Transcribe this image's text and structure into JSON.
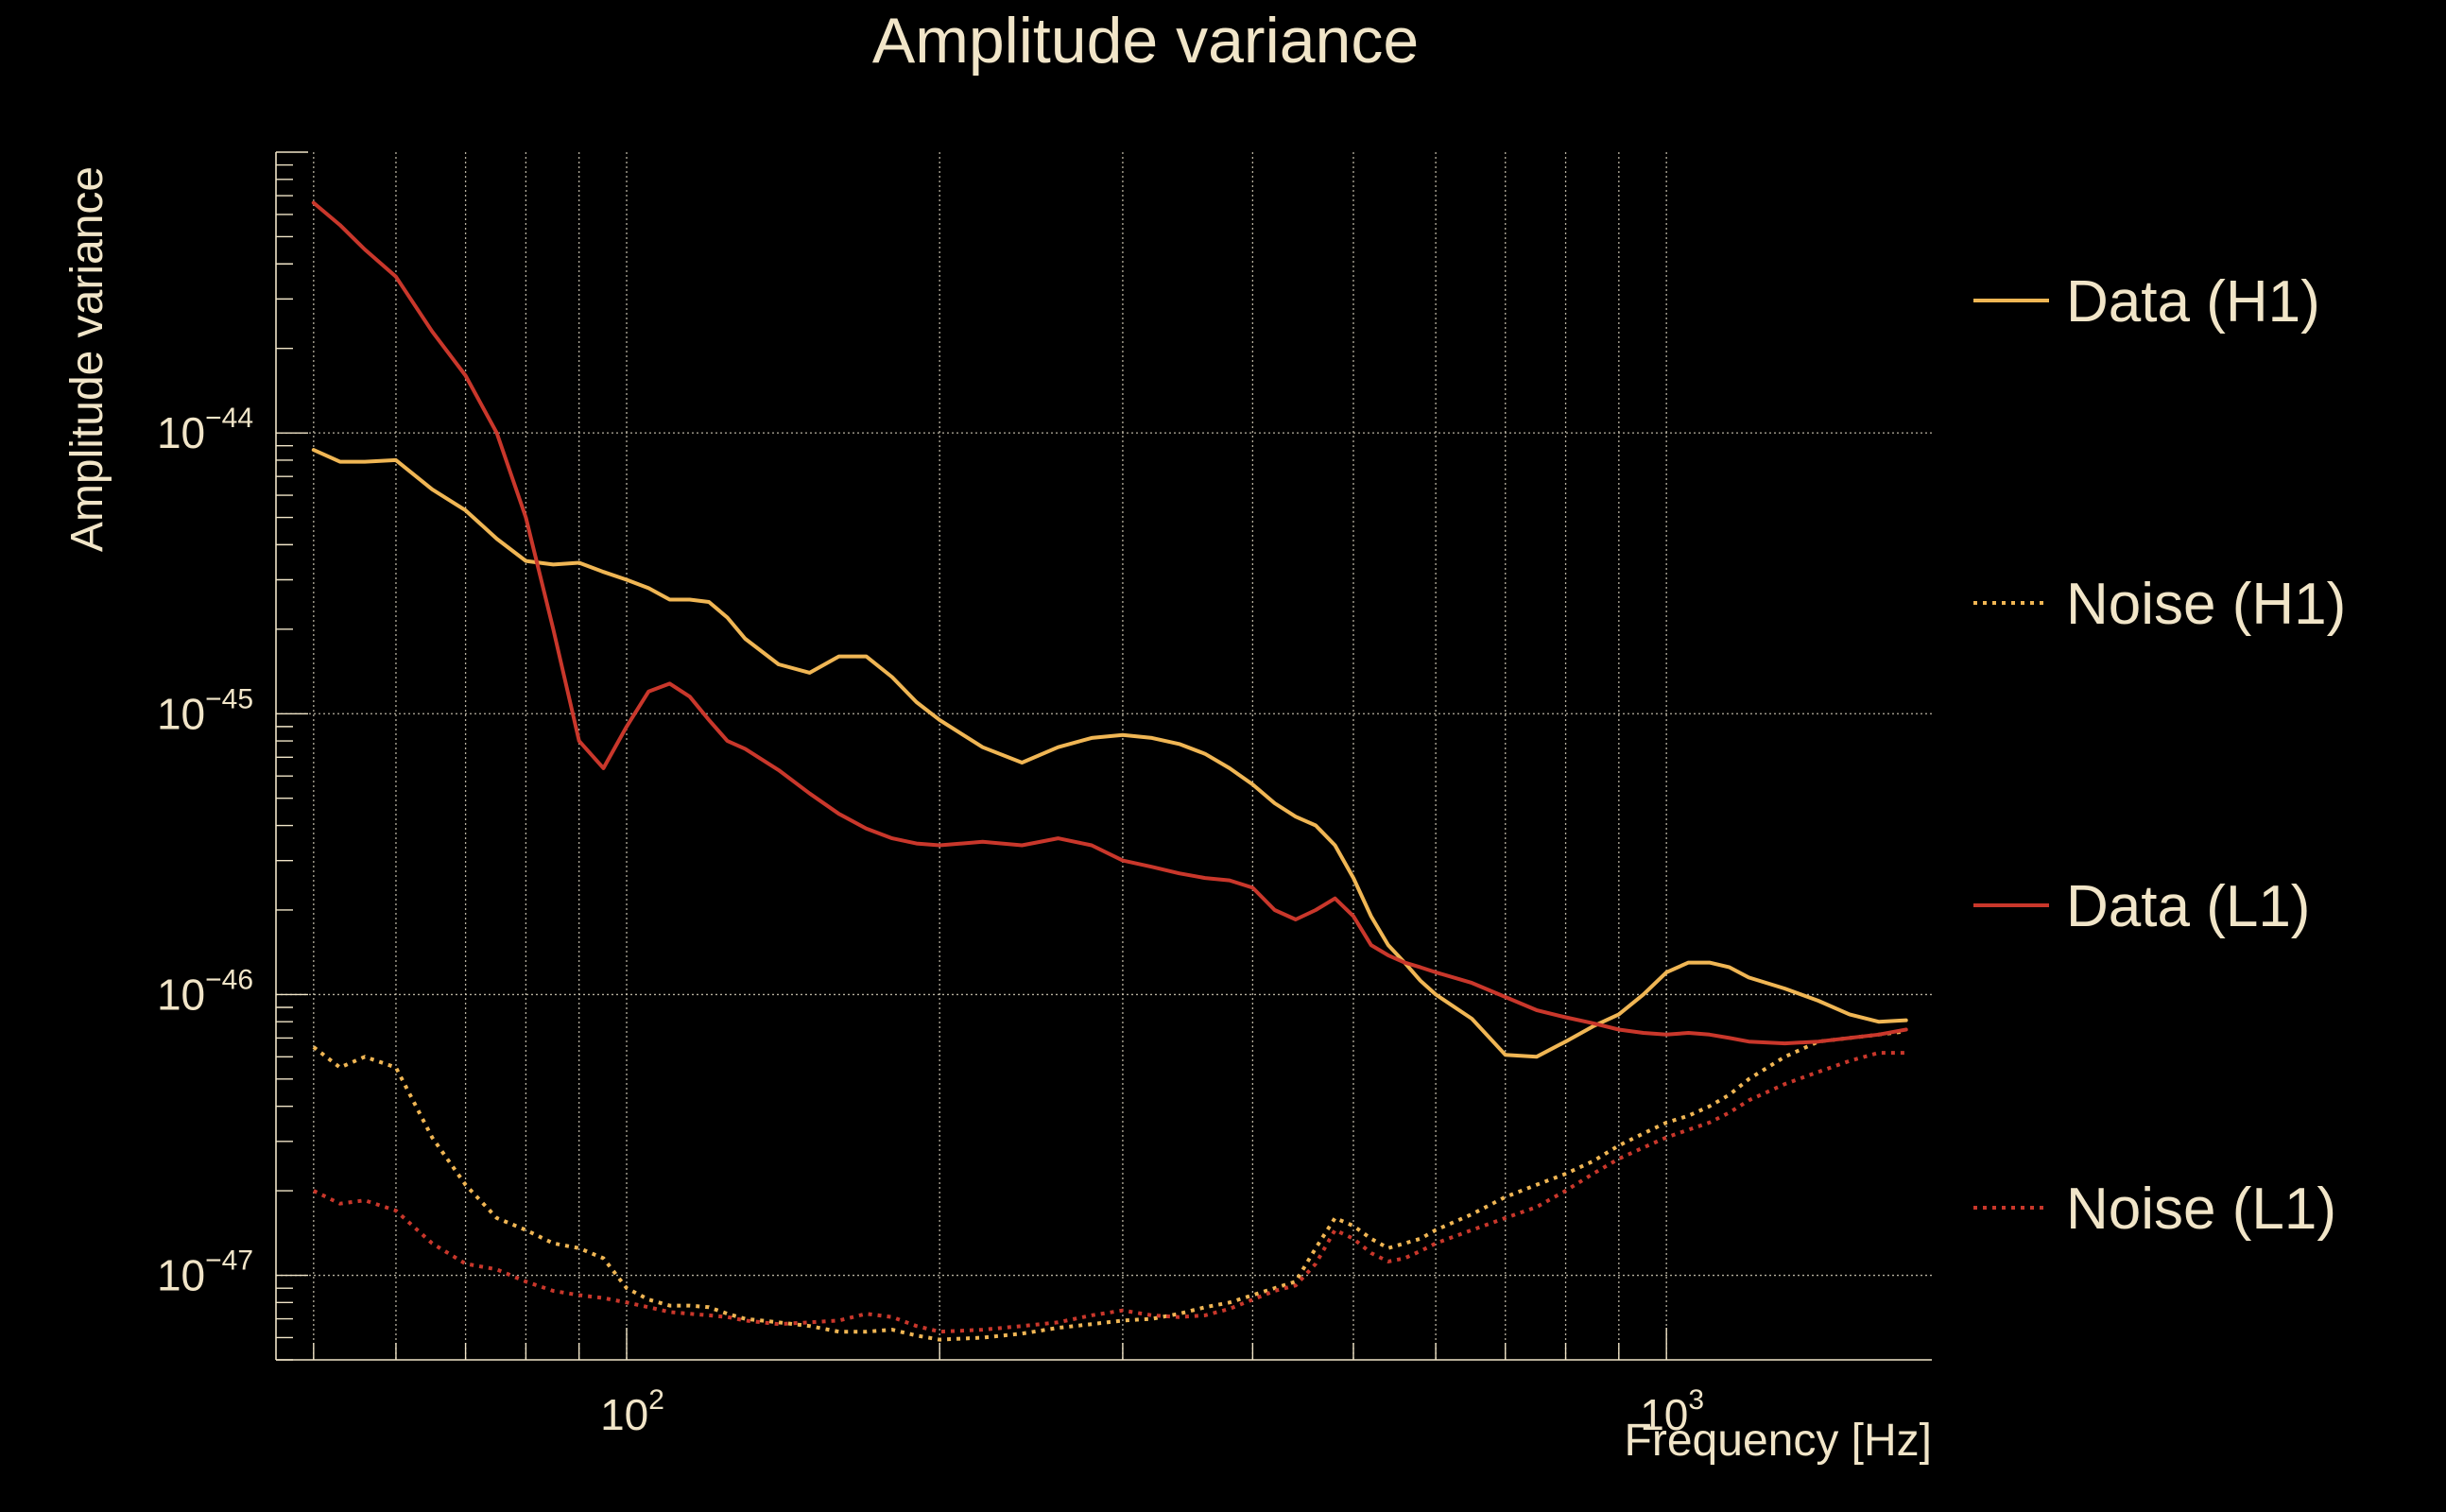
{
  "chart_data": {
    "type": "line",
    "title": "Amplitude variance",
    "xlabel": "Frequency [Hz]",
    "ylabel": "Amplitude variance",
    "xscale": "log",
    "yscale": "log",
    "xlim": [
      46,
      1800
    ],
    "ylim": [
      5e-48,
      1e-43
    ],
    "grid": true,
    "legend_position": "right",
    "x_ticks": [
      {
        "base": "10",
        "exp": "2",
        "value": 100
      },
      {
        "base": "10",
        "exp": "3",
        "value": 1000
      }
    ],
    "y_ticks": [
      {
        "base": "10",
        "exp": "−44",
        "value": 1e-44
      },
      {
        "base": "10",
        "exp": "−45",
        "value": 1e-45
      },
      {
        "base": "10",
        "exp": "−46",
        "value": 1e-46
      },
      {
        "base": "10",
        "exp": "−47",
        "value": 1e-47
      }
    ],
    "x": [
      50,
      53,
      56,
      60,
      65,
      70,
      75,
      80,
      85,
      90,
      95,
      100,
      105,
      110,
      115,
      120,
      125,
      130,
      140,
      150,
      160,
      170,
      180,
      190,
      200,
      220,
      240,
      260,
      280,
      300,
      320,
      340,
      360,
      380,
      400,
      420,
      440,
      460,
      480,
      500,
      520,
      540,
      560,
      580,
      600,
      650,
      700,
      750,
      800,
      850,
      900,
      950,
      1000,
      1050,
      1100,
      1150,
      1200,
      1300,
      1400,
      1500,
      1600,
      1700
    ],
    "series": [
      {
        "name": "Data (H1)",
        "color": "#f0b654",
        "style": "solid",
        "values": [
          8.7e-45,
          7.9e-45,
          7.9e-45,
          8e-45,
          6.3e-45,
          5.3e-45,
          4.2e-45,
          3.5e-45,
          3.4e-45,
          3.45e-45,
          3.2e-45,
          3e-45,
          2.8e-45,
          2.55e-45,
          2.55e-45,
          2.5e-45,
          2.2e-45,
          1.85e-45,
          1.5e-45,
          1.4e-45,
          1.6e-45,
          1.6e-45,
          1.35e-45,
          1.1e-45,
          9.5e-46,
          7.6e-46,
          6.7e-46,
          7.6e-46,
          8.2e-46,
          8.4e-46,
          8.2e-46,
          7.8e-46,
          7.2e-46,
          6.4e-46,
          5.6e-46,
          4.8e-46,
          4.3e-46,
          4e-46,
          3.4e-46,
          2.6e-46,
          1.9e-46,
          1.5e-46,
          1.3e-46,
          1.12e-46,
          1e-46,
          8.2e-47,
          6.1e-47,
          6e-47,
          6.8e-47,
          7.7e-47,
          8.5e-47,
          1e-46,
          1.2e-46,
          1.3e-46,
          1.3e-46,
          1.25e-46,
          1.15e-46,
          1.05e-46,
          9.5e-47,
          8.5e-47,
          8e-47,
          8.1e-47
        ]
      },
      {
        "name": "Noise (H1)",
        "color": "#f0b654",
        "style": "dotted",
        "values": [
          6.5e-47,
          5.5e-47,
          6e-47,
          5.5e-47,
          3.1e-47,
          2.1e-47,
          1.6e-47,
          1.45e-47,
          1.3e-47,
          1.25e-47,
          1.15e-47,
          9e-48,
          8.2e-48,
          7.8e-48,
          7.8e-48,
          7.7e-48,
          7.3e-48,
          7e-48,
          6.8e-48,
          6.6e-48,
          6.3e-48,
          6.3e-48,
          6.4e-48,
          6.1e-48,
          5.9e-48,
          6e-48,
          6.2e-48,
          6.5e-48,
          6.7e-48,
          6.9e-48,
          7e-48,
          7.3e-48,
          7.7e-48,
          8e-48,
          8.5e-48,
          9e-48,
          9.5e-48,
          1.25e-47,
          1.6e-47,
          1.5e-47,
          1.35e-47,
          1.25e-47,
          1.3e-47,
          1.35e-47,
          1.45e-47,
          1.65e-47,
          1.9e-47,
          2.1e-47,
          2.3e-47,
          2.55e-47,
          2.9e-47,
          3.2e-47,
          3.5e-47,
          3.7e-47,
          4e-47,
          4.4e-47,
          5e-47,
          6e-47,
          6.8e-47,
          7e-47,
          7.2e-47,
          7.4e-47
        ]
      },
      {
        "name": "Data (L1)",
        "color": "#c9372b",
        "style": "solid",
        "values": [
          6.6e-44,
          5.5e-44,
          4.5e-44,
          3.6e-44,
          2.3e-44,
          1.6e-44,
          1e-44,
          5e-45,
          2e-45,
          8e-46,
          6.4e-46,
          9e-46,
          1.2e-45,
          1.28e-45,
          1.15e-45,
          9.5e-46,
          8e-46,
          7.5e-46,
          6.3e-46,
          5.2e-46,
          4.4e-46,
          3.9e-46,
          3.6e-46,
          3.45e-46,
          3.4e-46,
          3.5e-46,
          3.4e-46,
          3.6e-46,
          3.4e-46,
          3e-46,
          2.85e-46,
          2.7e-46,
          2.6e-46,
          2.55e-46,
          2.4e-46,
          2e-46,
          1.85e-46,
          2e-46,
          2.2e-46,
          1.9e-46,
          1.5e-46,
          1.38e-46,
          1.3e-46,
          1.25e-46,
          1.2e-46,
          1.1e-46,
          9.8e-47,
          8.8e-47,
          8.3e-47,
          7.9e-47,
          7.5e-47,
          7.3e-47,
          7.2e-47,
          7.3e-47,
          7.2e-47,
          7e-47,
          6.8e-47,
          6.7e-47,
          6.8e-47,
          7e-47,
          7.2e-47,
          7.5e-47
        ]
      },
      {
        "name": "Noise (L1)",
        "color": "#c9372b",
        "style": "dotted",
        "values": [
          2e-47,
          1.8e-47,
          1.85e-47,
          1.7e-47,
          1.3e-47,
          1.1e-47,
          1.05e-47,
          9.5e-48,
          8.8e-48,
          8.5e-48,
          8.3e-48,
          8e-48,
          7.7e-48,
          7.4e-48,
          7.3e-48,
          7.2e-48,
          7.1e-48,
          6.9e-48,
          6.7e-48,
          6.8e-48,
          6.9e-48,
          7.3e-48,
          7.1e-48,
          6.6e-48,
          6.3e-48,
          6.4e-48,
          6.6e-48,
          6.8e-48,
          7.2e-48,
          7.5e-48,
          7.2e-48,
          7.1e-48,
          7.2e-48,
          7.6e-48,
          8.2e-48,
          8.8e-48,
          9.2e-48,
          1.1e-47,
          1.45e-47,
          1.35e-47,
          1.2e-47,
          1.12e-47,
          1.15e-47,
          1.22e-47,
          1.3e-47,
          1.45e-47,
          1.6e-47,
          1.75e-47,
          2e-47,
          2.3e-47,
          2.6e-47,
          2.85e-47,
          3.1e-47,
          3.3e-47,
          3.5e-47,
          3.8e-47,
          4.2e-47,
          4.8e-47,
          5.3e-47,
          5.8e-47,
          6.2e-47,
          6.2e-47
        ]
      }
    ]
  }
}
